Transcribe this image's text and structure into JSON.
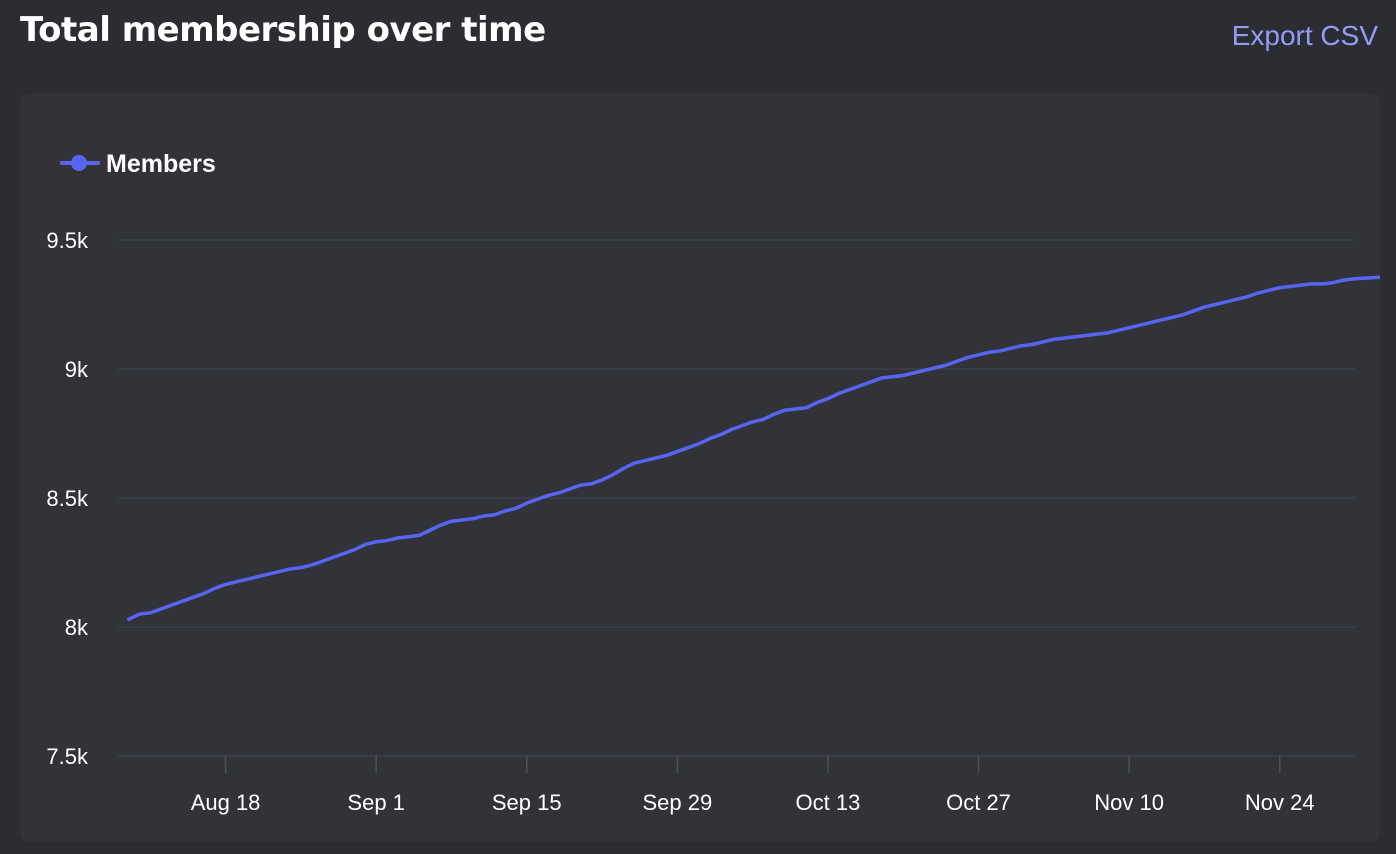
{
  "header": {
    "title": "Total membership over time",
    "export_label": "Export CSV"
  },
  "colors": {
    "background": "#2c2d32",
    "card": "#313338",
    "series": "#5865f2",
    "accent_link": "#949cf7",
    "grid": "#3f4147"
  },
  "chart_data": {
    "type": "line",
    "title": "Total membership over time",
    "xlabel": "",
    "ylabel": "",
    "ylim": [
      7500,
      9500
    ],
    "yticks": [
      7500,
      8000,
      8500,
      9000,
      9500
    ],
    "ytick_labels": [
      "7.5k",
      "8k",
      "8.5k",
      "9k",
      "9.5k"
    ],
    "xticks": [
      "2024-08-18",
      "2024-09-01",
      "2024-09-15",
      "2024-09-29",
      "2024-10-13",
      "2024-10-27",
      "2024-11-10",
      "2024-11-24"
    ],
    "xtick_labels": [
      "Aug 18",
      "Sep 1",
      "Sep 15",
      "Sep 29",
      "Oct 13",
      "Oct 27",
      "Nov 10",
      "Nov 24"
    ],
    "xlim": [
      "2024-08-08",
      "2024-12-01"
    ],
    "grid": true,
    "legend": "top-left",
    "series": [
      {
        "name": "Members",
        "x_start": "2024-08-09",
        "values": [
          8030,
          8050,
          8055,
          8070,
          8085,
          8100,
          8115,
          8130,
          8150,
          8165,
          8175,
          8185,
          8195,
          8205,
          8215,
          8225,
          8230,
          8240,
          8255,
          8270,
          8285,
          8300,
          8320,
          8330,
          8335,
          8345,
          8350,
          8355,
          8375,
          8395,
          8410,
          8415,
          8420,
          8430,
          8435,
          8450,
          8460,
          8480,
          8495,
          8510,
          8520,
          8535,
          8550,
          8555,
          8570,
          8590,
          8615,
          8635,
          8645,
          8655,
          8665,
          8680,
          8695,
          8710,
          8730,
          8745,
          8765,
          8780,
          8795,
          8805,
          8825,
          8840,
          8845,
          8850,
          8870,
          8885,
          8905,
          8920,
          8935,
          8950,
          8965,
          8970,
          8975,
          8985,
          8995,
          9005,
          9015,
          9030,
          9045,
          9055,
          9065,
          9070,
          9080,
          9090,
          9095,
          9105,
          9115,
          9120,
          9125,
          9130,
          9135,
          9140,
          9150,
          9160,
          9170,
          9180,
          9190,
          9200,
          9210,
          9225,
          9240,
          9250,
          9260,
          9270,
          9280,
          9295,
          9305,
          9315,
          9320,
          9325,
          9330,
          9330,
          9335,
          9345,
          9350,
          9352,
          9355,
          9355,
          9358,
          9365
        ]
      }
    ]
  }
}
